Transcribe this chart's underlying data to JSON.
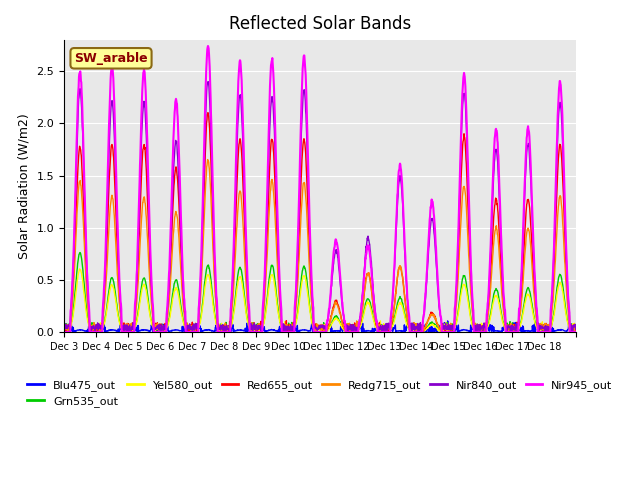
{
  "title": "Reflected Solar Bands",
  "ylabel": "Solar Radiation (W/m2)",
  "xlabel": "",
  "annotation": "SW_arable",
  "background_color": "#e8e8e8",
  "ylim": [
    0,
    2.8
  ],
  "series": {
    "Blu475_out": {
      "color": "#0000ff",
      "lw": 1.0
    },
    "Grn535_out": {
      "color": "#00cc00",
      "lw": 1.0
    },
    "Yel580_out": {
      "color": "#ffff00",
      "lw": 1.0
    },
    "Red655_out": {
      "color": "#ff0000",
      "lw": 1.0
    },
    "Redg715_out": {
      "color": "#ff8800",
      "lw": 1.0
    },
    "Nir840_out": {
      "color": "#8800cc",
      "lw": 1.0
    },
    "Nir945_out": {
      "color": "#ff00ff",
      "lw": 1.5
    }
  },
  "xtick_labels": [
    "Dec 3",
    "Dec 4",
    "Dec 5",
    "Dec 6",
    "Dec 7",
    "Dec 8",
    "Dec 9",
    "Dec 10",
    "Dec 11",
    "Dec 12",
    "Dec 13",
    "Dec 14",
    "Dec 15",
    "Dec 16",
    "Dec 17",
    "Dec 18"
  ],
  "nir945_peaks": [
    2.5,
    2.55,
    2.51,
    2.23,
    2.74,
    2.6,
    2.62,
    2.65,
    0.88,
    0.83,
    1.6,
    1.25,
    2.47,
    1.95,
    1.96,
    2.4
  ],
  "red655_peaks": [
    1.77,
    1.8,
    1.8,
    1.57,
    2.1,
    1.85,
    1.85,
    1.85,
    0.3,
    0.57,
    0.63,
    0.18,
    1.88,
    1.28,
    1.28,
    1.8
  ],
  "redg715_peaks": [
    1.45,
    1.3,
    1.29,
    1.15,
    1.65,
    1.35,
    1.45,
    1.43,
    0.27,
    0.56,
    0.63,
    0.17,
    1.4,
    1.0,
    1.0,
    1.3
  ],
  "nir840_peaks": [
    2.33,
    2.21,
    2.2,
    1.83,
    2.42,
    2.28,
    2.25,
    2.32,
    0.78,
    0.9,
    1.48,
    1.09,
    2.3,
    1.75,
    1.8,
    2.2
  ],
  "grn535_peaks": [
    0.76,
    0.52,
    0.52,
    0.5,
    0.64,
    0.62,
    0.64,
    0.63,
    0.15,
    0.32,
    0.33,
    0.09,
    0.54,
    0.41,
    0.42,
    0.55
  ],
  "yel580_peaks": [
    0.6,
    0.45,
    0.45,
    0.42,
    0.55,
    0.53,
    0.55,
    0.54,
    0.13,
    0.28,
    0.28,
    0.07,
    0.46,
    0.35,
    0.36,
    0.47
  ],
  "blu475_peaks": [
    0.02,
    0.02,
    0.02,
    0.02,
    0.02,
    0.02,
    0.02,
    0.02,
    0.01,
    0.01,
    0.01,
    0.005,
    0.02,
    0.01,
    0.01,
    0.02
  ],
  "legend_ncol": 6
}
